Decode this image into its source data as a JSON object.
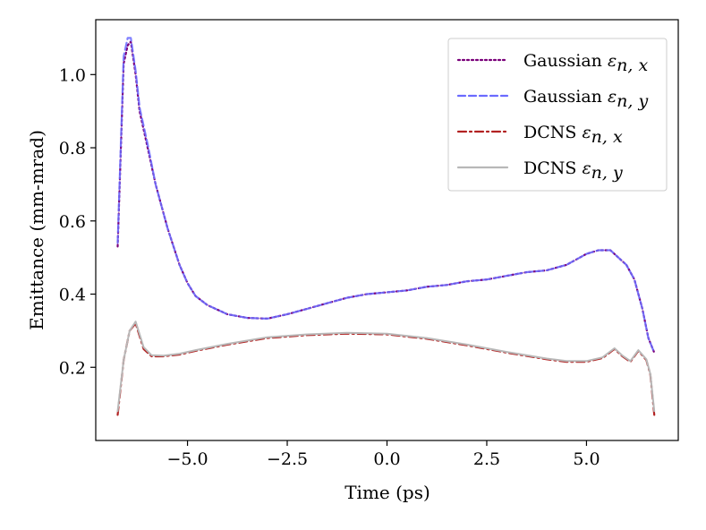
{
  "chart_data": {
    "type": "line",
    "title": "",
    "xlabel": "Time (ps)",
    "ylabel": "Emittance (mm-mrad)",
    "xlim": [
      -7.3,
      7.3
    ],
    "ylim": [
      0.0,
      1.15
    ],
    "xticks": [
      -5.0,
      -2.5,
      0.0,
      2.5,
      5.0
    ],
    "xtick_labels": [
      "−5.0",
      "−2.5",
      "0.0",
      "2.5",
      "5.0"
    ],
    "yticks": [
      0.2,
      0.4,
      0.6,
      0.8,
      1.0
    ],
    "ytick_labels": [
      "0.2",
      "0.4",
      "0.6",
      "0.8",
      "1.0"
    ],
    "grid": false,
    "legend_position": "top-right",
    "series": [
      {
        "name": "Gaussian",
        "symbol": "ε",
        "subscript": "n, x",
        "color": "#7a007a",
        "style": "dotted",
        "x": [
          -6.75,
          -6.6,
          -6.5,
          -6.42,
          -6.3,
          -6.2,
          -6.0,
          -5.8,
          -5.5,
          -5.2,
          -5.0,
          -4.8,
          -4.5,
          -4.0,
          -3.5,
          -3.0,
          -2.5,
          -2.0,
          -1.5,
          -1.0,
          -0.5,
          0.0,
          0.5,
          1.0,
          1.5,
          2.0,
          2.5,
          3.0,
          3.5,
          4.0,
          4.5,
          5.0,
          5.3,
          5.6,
          5.8,
          6.0,
          6.2,
          6.4,
          6.55,
          6.7
        ],
        "y": [
          0.53,
          1.03,
          1.08,
          1.09,
          1.0,
          0.9,
          0.8,
          0.7,
          0.58,
          0.48,
          0.43,
          0.395,
          0.37,
          0.345,
          0.335,
          0.333,
          0.345,
          0.36,
          0.375,
          0.39,
          0.4,
          0.405,
          0.41,
          0.42,
          0.425,
          0.435,
          0.44,
          0.45,
          0.46,
          0.465,
          0.48,
          0.51,
          0.52,
          0.52,
          0.5,
          0.48,
          0.44,
          0.36,
          0.28,
          0.24
        ]
      },
      {
        "name": "Gaussian",
        "symbol": "ε",
        "subscript": "n, y",
        "color": "#6b6bff",
        "style": "dashed",
        "x": [
          -6.75,
          -6.6,
          -6.5,
          -6.42,
          -6.3,
          -6.2,
          -6.0,
          -5.8,
          -5.5,
          -5.2,
          -5.0,
          -4.8,
          -4.5,
          -4.0,
          -3.5,
          -3.0,
          -2.5,
          -2.0,
          -1.5,
          -1.0,
          -0.5,
          0.0,
          0.5,
          1.0,
          1.5,
          2.0,
          2.5,
          3.0,
          3.5,
          4.0,
          4.5,
          5.0,
          5.3,
          5.6,
          5.8,
          6.0,
          6.2,
          6.4,
          6.55,
          6.7
        ],
        "y": [
          0.54,
          1.05,
          1.1,
          1.1,
          1.01,
          0.91,
          0.81,
          0.7,
          0.58,
          0.48,
          0.43,
          0.395,
          0.37,
          0.345,
          0.335,
          0.333,
          0.345,
          0.36,
          0.375,
          0.39,
          0.4,
          0.405,
          0.41,
          0.42,
          0.425,
          0.435,
          0.44,
          0.45,
          0.46,
          0.465,
          0.48,
          0.51,
          0.52,
          0.52,
          0.5,
          0.48,
          0.44,
          0.36,
          0.28,
          0.24
        ]
      },
      {
        "name": "DCNS",
        "symbol": "ε",
        "subscript": "n, x",
        "color": "#b22222",
        "style": "dashdot",
        "x": [
          -6.75,
          -6.6,
          -6.45,
          -6.3,
          -6.1,
          -5.9,
          -5.6,
          -5.2,
          -4.8,
          -4.0,
          -3.0,
          -2.0,
          -1.0,
          0.0,
          1.0,
          2.0,
          3.0,
          4.0,
          4.5,
          5.0,
          5.4,
          5.7,
          5.9,
          6.1,
          6.3,
          6.5,
          6.6,
          6.7
        ],
        "y": [
          0.07,
          0.22,
          0.3,
          0.32,
          0.25,
          0.23,
          0.23,
          0.235,
          0.245,
          0.262,
          0.28,
          0.288,
          0.292,
          0.29,
          0.278,
          0.26,
          0.24,
          0.222,
          0.215,
          0.215,
          0.225,
          0.25,
          0.23,
          0.215,
          0.245,
          0.22,
          0.18,
          0.07
        ]
      },
      {
        "name": "DCNS",
        "symbol": "ε",
        "subscript": "n, y",
        "color": "#b8b8b8",
        "style": "solid",
        "x": [
          -6.75,
          -6.6,
          -6.45,
          -6.3,
          -6.1,
          -5.9,
          -5.6,
          -5.2,
          -4.8,
          -4.0,
          -3.0,
          -2.0,
          -1.0,
          0.0,
          1.0,
          2.0,
          3.0,
          4.0,
          4.5,
          5.0,
          5.4,
          5.7,
          5.9,
          6.1,
          6.3,
          6.5,
          6.6,
          6.7
        ],
        "y": [
          0.08,
          0.22,
          0.3,
          0.325,
          0.255,
          0.233,
          0.232,
          0.237,
          0.247,
          0.264,
          0.282,
          0.29,
          0.294,
          0.292,
          0.28,
          0.262,
          0.242,
          0.224,
          0.217,
          0.217,
          0.227,
          0.252,
          0.232,
          0.217,
          0.247,
          0.222,
          0.182,
          0.08
        ]
      }
    ]
  }
}
